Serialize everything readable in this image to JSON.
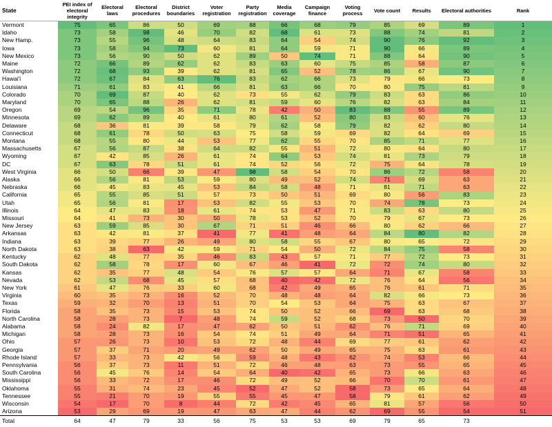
{
  "table": {
    "columns": [
      "State",
      "PEI index of electoral integrity",
      "Electoral laws",
      "Electoral procedures",
      "District boundaries",
      "Voter registration",
      "Party registration",
      "Media coverage",
      "Campaign finance",
      "Voting process",
      "Vote count",
      "Results",
      "Electoral authorities",
      "Rank"
    ],
    "rows": [
      [
        "Vermont",
        75,
        65,
        86,
        50,
        69,
        88,
        66,
        68,
        79,
        85,
        69,
        89,
        1
      ],
      [
        "Idaho",
        73,
        58,
        98,
        46,
        70,
        82,
        68,
        61,
        73,
        88,
        74,
        81,
        2
      ],
      [
        "New Hamp.",
        73,
        55,
        96,
        48,
        64,
        83,
        64,
        54,
        74,
        90,
        76,
        92,
        3
      ],
      [
        "Iowa",
        73,
        58,
        94,
        73,
        60,
        81,
        64,
        59,
        71,
        90,
        66,
        89,
        4
      ],
      [
        "New Mexico",
        73,
        56,
        90,
        50,
        62,
        89,
        50,
        74,
        71,
        88,
        64,
        90,
        5
      ],
      [
        "Maine",
        72,
        66,
        89,
        62,
        62,
        83,
        63,
        60,
        75,
        85,
        58,
        87,
        6
      ],
      [
        "Washington",
        72,
        68,
        93,
        39,
        62,
        81,
        65,
        52,
        78,
        86,
        67,
        90,
        7
      ],
      [
        "Hawai'i",
        72,
        67,
        84,
        63,
        76,
        83,
        62,
        66,
        73,
        79,
        66,
        73,
        8
      ],
      [
        "Louisiana",
        71,
        61,
        83,
        41,
        66,
        81,
        63,
        66,
        70,
        80,
        75,
        81,
        9
      ],
      [
        "Colorado",
        70,
        69,
        87,
        40,
        62,
        73,
        55,
        62,
        79,
        83,
        63,
        86,
        10
      ],
      [
        "Maryland",
        70,
        65,
        88,
        26,
        62,
        81,
        59,
        60,
        76,
        82,
        63,
        84,
        11
      ],
      [
        "Oregon",
        69,
        54,
        96,
        35,
        71,
        78,
        42,
        50,
        83,
        88,
        55,
        89,
        12
      ],
      [
        "Minnesota",
        69,
        62,
        89,
        40,
        61,
        80,
        61,
        52,
        80,
        83,
        60,
        76,
        13
      ],
      [
        "Delaware",
        68,
        36,
        81,
        39,
        58,
        79,
        62,
        58,
        79,
        82,
        62,
        80,
        14
      ],
      [
        "Connecticut",
        68,
        61,
        78,
        50,
        63,
        75,
        58,
        59,
        69,
        82,
        64,
        69,
        15
      ],
      [
        "Montana",
        68,
        55,
        80,
        44,
        53,
        77,
        62,
        55,
        70,
        85,
        71,
        77,
        16
      ],
      [
        "Massachusetts",
        67,
        56,
        87,
        38,
        64,
        82,
        55,
        51,
        72,
        80,
        64,
        80,
        17
      ],
      [
        "Wyoming",
        67,
        42,
        85,
        26,
        61,
        74,
        64,
        53,
        74,
        81,
        73,
        79,
        18
      ],
      [
        "DC",
        67,
        63,
        78,
        51,
        61,
        74,
        52,
        56,
        72,
        75,
        64,
        78,
        19
      ],
      [
        "West Virginia",
        66,
        50,
        66,
        39,
        47,
        98,
        58,
        54,
        70,
        86,
        72,
        58,
        20
      ],
      [
        "Alaska",
        66,
        56,
        81,
        53,
        59,
        80,
        49,
        52,
        74,
        71,
        69,
        63,
        21
      ],
      [
        "Nebraska",
        66,
        45,
        83,
        45,
        53,
        84,
        58,
        48,
        71,
        81,
        71,
        63,
        22
      ],
      [
        "California",
        65,
        55,
        85,
        51,
        57,
        73,
        50,
        51,
        69,
        80,
        56,
        83,
        23
      ],
      [
        "Utah",
        65,
        56,
        81,
        17,
        53,
        82,
        55,
        53,
        70,
        74,
        78,
        73,
        24
      ],
      [
        "Illinois",
        64,
        47,
        83,
        18,
        61,
        74,
        53,
        47,
        71,
        83,
        63,
        80,
        25
      ],
      [
        "Missouri",
        64,
        41,
        73,
        30,
        50,
        78,
        53,
        52,
        70,
        79,
        67,
        73,
        26
      ],
      [
        "New Jersey",
        63,
        59,
        85,
        30,
        67,
        71,
        51,
        46,
        66,
        80,
        62,
        66,
        27
      ],
      [
        "Arkansas",
        63,
        42,
        81,
        37,
        41,
        77,
        41,
        48,
        64,
        84,
        80,
        82,
        28
      ],
      [
        "Indiana",
        63,
        39,
        77,
        26,
        49,
        80,
        58,
        55,
        67,
        80,
        65,
        72,
        29
      ],
      [
        "North Dakota",
        63,
        38,
        63,
        42,
        59,
        71,
        54,
        50,
        72,
        84,
        75,
        58,
        30
      ],
      [
        "Kentucky",
        62,
        48,
        77,
        35,
        46,
        83,
        43,
        57,
        71,
        77,
        72,
        73,
        31
      ],
      [
        "South Dakota",
        62,
        58,
        78,
        17,
        60,
        67,
        46,
        41,
        72,
        72,
        74,
        80,
        32
      ],
      [
        "Kansas",
        62,
        35,
        77,
        48,
        54,
        76,
        57,
        57,
        64,
        71,
        67,
        58,
        33
      ],
      [
        "Nevada",
        62,
        53,
        68,
        45,
        57,
        68,
        40,
        42,
        72,
        76,
        64,
        56,
        34
      ],
      [
        "New York",
        61,
        47,
        76,
        33,
        60,
        68,
        42,
        49,
        65,
        76,
        61,
        71,
        35
      ],
      [
        "Virginia",
        60,
        35,
        73,
        16,
        52,
        70,
        48,
        48,
        64,
        82,
        66,
        73,
        36
      ],
      [
        "Texas",
        59,
        32,
        70,
        13,
        51,
        70,
        54,
        53,
        64,
        75,
        63,
        67,
        37
      ],
      [
        "Florida",
        58,
        35,
        73,
        15,
        53,
        74,
        50,
        52,
        66,
        69,
        63,
        68,
        38
      ],
      [
        "North Carolina",
        58,
        28,
        73,
        7,
        48,
        74,
        59,
        52,
        68,
        73,
        50,
        70,
        39
      ],
      [
        "Alabama",
        58,
        24,
        82,
        17,
        47,
        62,
        50,
        51,
        62,
        76,
        71,
        69,
        40
      ],
      [
        "Michigan",
        58,
        28,
        73,
        16,
        54,
        74,
        51,
        49,
        64,
        71,
        51,
        65,
        41
      ],
      [
        "Ohio",
        57,
        26,
        73,
        10,
        53,
        72,
        48,
        44,
        69,
        77,
        61,
        62,
        42
      ],
      [
        "Georgia",
        57,
        37,
        71,
        20,
        49,
        62,
        50,
        49,
        65,
        75,
        63,
        61,
        43
      ],
      [
        "Rhode Island",
        57,
        33,
        73,
        42,
        56,
        59,
        48,
        43,
        62,
        74,
        53,
        66,
        44
      ],
      [
        "Pennsylvania",
        56,
        37,
        73,
        11,
        51,
        72,
        46,
        48,
        63,
        73,
        55,
        65,
        45
      ],
      [
        "South Carolina",
        56,
        45,
        76,
        14,
        54,
        64,
        40,
        42,
        65,
        73,
        66,
        63,
        46
      ],
      [
        "Mississippi",
        56,
        33,
        72,
        17,
        46,
        72,
        49,
        52,
        66,
        70,
        70,
        61,
        47
      ],
      [
        "Oklahoma",
        55,
        31,
        74,
        23,
        45,
        52,
        47,
        52,
        58,
        73,
        65,
        64,
        48
      ],
      [
        "Tennessee",
        55,
        21,
        70,
        19,
        55,
        55,
        45,
        47,
        58,
        79,
        61,
        62,
        49
      ],
      [
        "Wisconsin",
        54,
        17,
        70,
        8,
        44,
        72,
        42,
        45,
        65,
        81,
        57,
        56,
        50
      ],
      [
        "Arizona",
        53,
        29,
        69,
        19,
        47,
        63,
        47,
        44,
        62,
        69,
        55,
        54,
        51
      ]
    ],
    "total": [
      "Total",
      64,
      47,
      79,
      33,
      56,
      75,
      53,
      53,
      69,
      79,
      65,
      73
    ]
  },
  "color_scale": {
    "low": "#f8696b",
    "mid": "#ffeb84",
    "high": "#63be7b",
    "reversed_columns": [
      13
    ]
  }
}
